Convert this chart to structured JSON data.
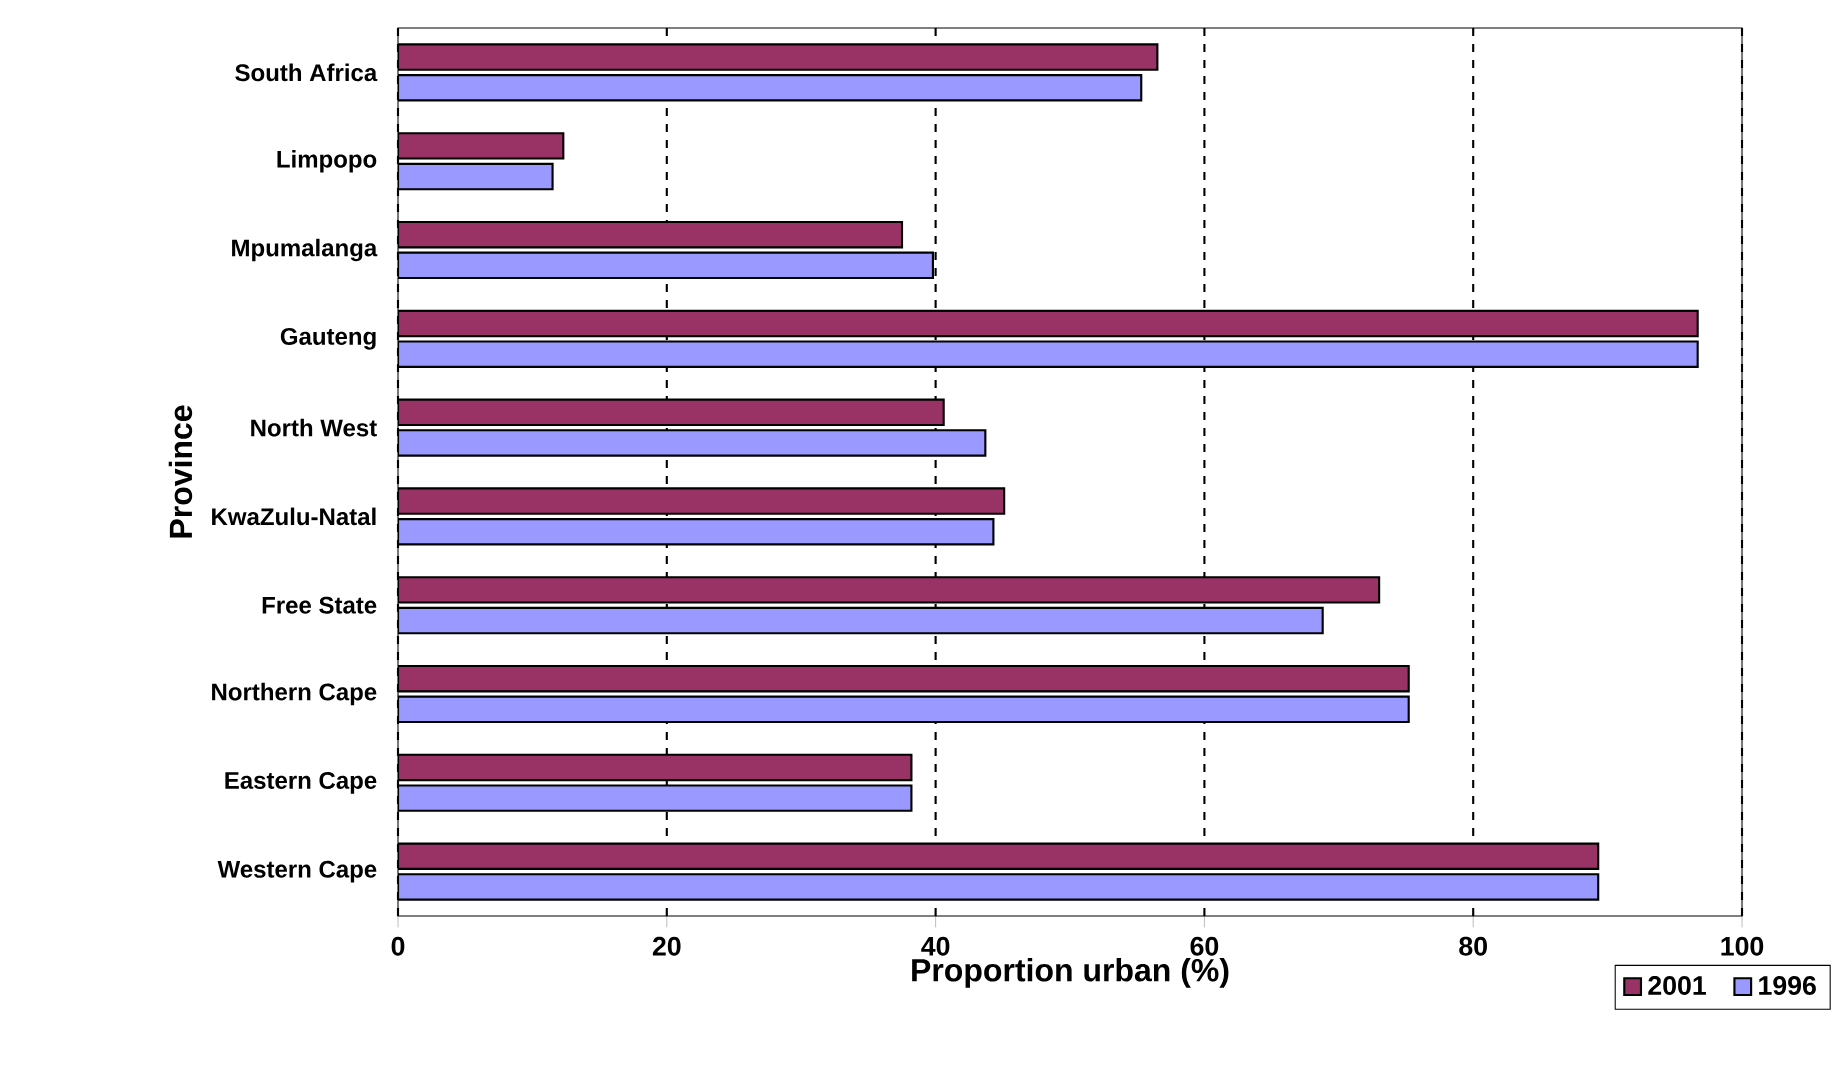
{
  "chart_data": {
    "type": "bar",
    "orientation": "horizontal",
    "xlabel": "Proportion urban (%)",
    "ylabel": "Province",
    "categories": [
      "South Africa",
      "Limpopo",
      "Mpumalanga",
      "Gauteng",
      "North West",
      "KwaZulu-Natal",
      "Free State",
      "Northern Cape",
      "Eastern Cape",
      "Western Cape"
    ],
    "series": [
      {
        "name": "2001",
        "color": "#993366",
        "values": [
          56.5,
          12.3,
          37.5,
          96.7,
          40.6,
          45.1,
          73.0,
          75.2,
          38.2,
          89.3
        ]
      },
      {
        "name": "1996",
        "color": "#9999ff",
        "values": [
          55.3,
          11.5,
          39.8,
          96.7,
          43.7,
          44.3,
          68.8,
          75.2,
          38.2,
          89.3
        ]
      }
    ],
    "xlim": [
      0,
      100
    ],
    "xticks": [
      0,
      20,
      40,
      60,
      80,
      100
    ],
    "grid": "x",
    "legend": "bottom right"
  }
}
